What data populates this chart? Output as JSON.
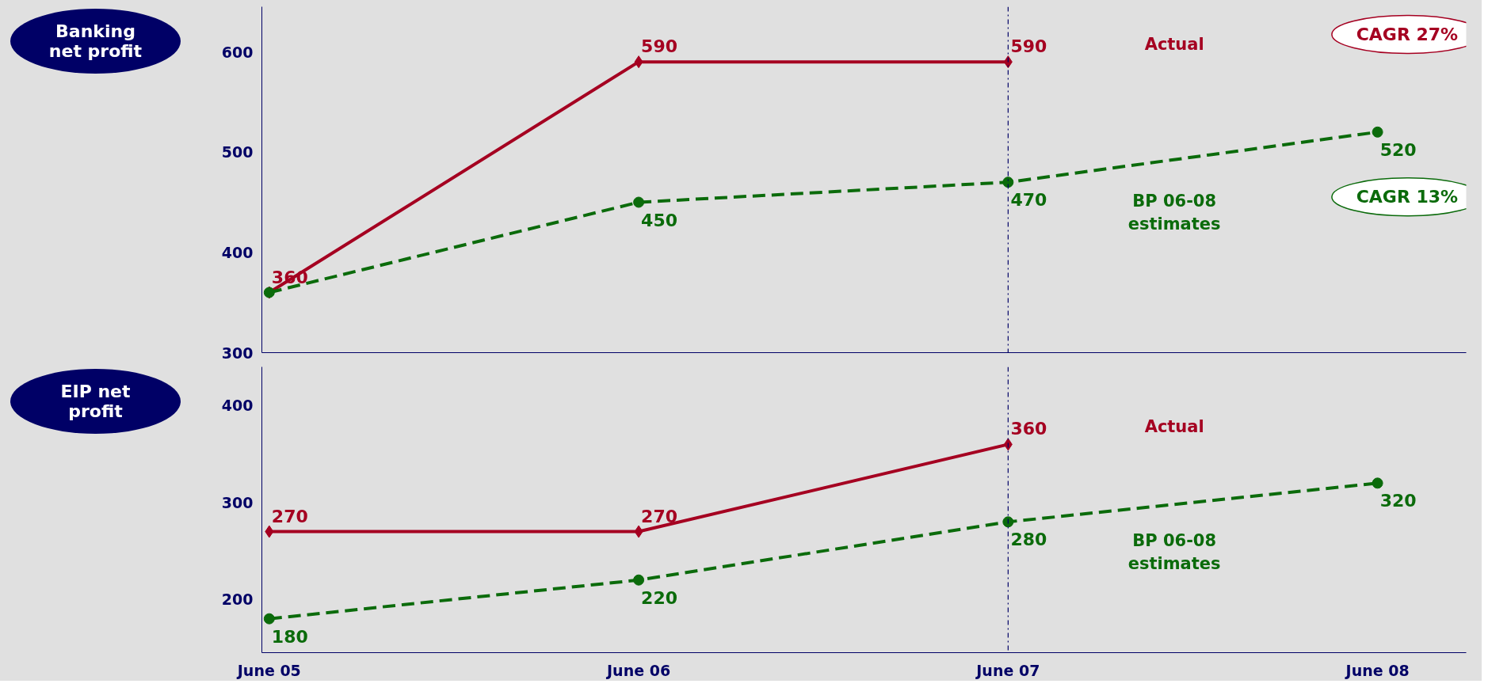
{
  "chart_data": [
    {
      "type": "line",
      "title": "Banking net profit",
      "categories": [
        "June 05",
        "June 06",
        "June 07",
        "June 08"
      ],
      "ylim": [
        300,
        645
      ],
      "yticks": [
        300,
        400,
        500,
        600
      ],
      "tick_labels": "y",
      "series": [
        {
          "name": "Actual",
          "color": "#a50021",
          "marker": "diamond",
          "line_style": "solid",
          "values": [
            360,
            590,
            590,
            null
          ],
          "value_labels": [
            "360",
            "590",
            "590",
            null
          ]
        },
        {
          "name": "BP 06-08\nestimates",
          "color": "#0b6b0b",
          "marker": "circle",
          "line_style": "dashed",
          "values": [
            360,
            450,
            470,
            520
          ],
          "value_labels": [
            null,
            "450",
            "470",
            "520"
          ]
        }
      ],
      "ref_lines": [
        {
          "axis": "x",
          "value": "June 07",
          "line_style": "dashdot",
          "color": "#000066"
        }
      ],
      "annotations": [
        "CAGR 27%",
        "CAGR 13%"
      ]
    },
    {
      "type": "line",
      "title": "EIP net profit",
      "categories": [
        "June 05",
        "June 06",
        "June 07",
        "June 08"
      ],
      "ylim": [
        145,
        440
      ],
      "yticks": [
        200,
        300,
        400
      ],
      "series": [
        {
          "name": "Actual",
          "color": "#a50021",
          "marker": "diamond",
          "line_style": "solid",
          "values": [
            270,
            270,
            360,
            null
          ],
          "value_labels": [
            "270",
            "270",
            "360",
            null
          ]
        },
        {
          "name": "BP 06-08\nestimates",
          "color": "#0b6b0b",
          "marker": "circle",
          "line_style": "dashed",
          "values": [
            180,
            220,
            280,
            320
          ],
          "value_labels": [
            "180",
            "220",
            "280",
            "320"
          ]
        }
      ],
      "ref_lines": [
        {
          "axis": "x",
          "value": "June 07",
          "line_style": "dashdot",
          "color": "#000066"
        }
      ]
    }
  ]
}
